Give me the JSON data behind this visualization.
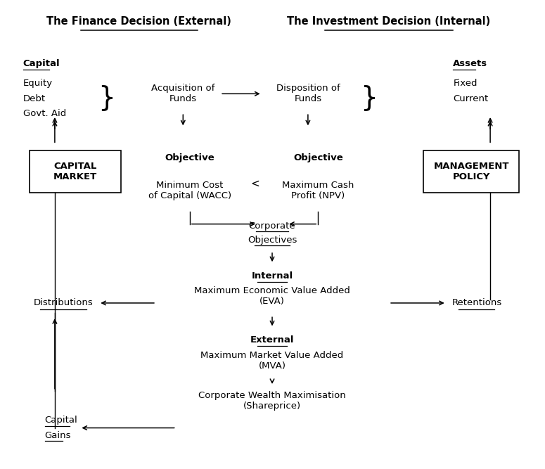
{
  "bg_color": "#ffffff",
  "text_color": "#000000",
  "title_left": "The Finance Decision (External)",
  "title_right": "The Investment Decision (Internal)",
  "capital_header": "Capital",
  "capital_items": [
    "Equity",
    "Debt",
    "Govt. Aid"
  ],
  "assets_header": "Assets",
  "assets_items": [
    "Fixed",
    "Current"
  ],
  "acq_funds": "Acquisition of\nFunds",
  "disp_funds": "Disposition of\nFunds",
  "capital_market": "CAPITAL\nMARKET",
  "management_policy": "MANAGEMENT\nPOLICY",
  "obj_left_header": "Objective",
  "obj_left_body": "Minimum Cost\nof Capital (WACC)",
  "obj_right_header": "Objective",
  "obj_right_body": "Maximum Cash\nProfit (NPV)",
  "less_than": "<",
  "corp_obj_line1": "Corporate",
  "corp_obj_line2": "Objectives",
  "internal_header": "Internal",
  "internal_body": "Maximum Economic Value Added\n(EVA)",
  "distributions": "Distributions",
  "retentions": "Retentions",
  "external_header": "External",
  "external_body": "Maximum Market Value Added\n(MVA)",
  "corp_wealth": "Corporate Wealth Maximisation\n(Shareprice)",
  "capital_gains_line1": "Capital",
  "capital_gains_line2": "Gains"
}
